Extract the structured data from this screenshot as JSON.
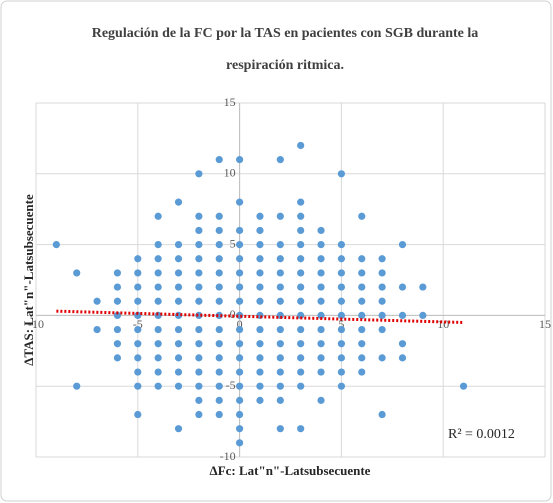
{
  "chart_data": {
    "type": "scatter",
    "title": [
      "Regulación de la  FC por la TAS en pacientes con SGB durante la",
      "respiración ritmica."
    ],
    "x_label": "ΔFc: Lat\"n\"-Latsubsecuente",
    "y_label": "ΔTAS: Lat\"n\"-Latsubsecuente",
    "annotation": "R² = 0.0012",
    "xlim": [
      -10,
      15
    ],
    "ylim": [
      -10,
      15
    ],
    "xticks": [
      -10,
      -5,
      0,
      5,
      10,
      15
    ],
    "yticks": [
      -10,
      -5,
      0,
      5,
      10,
      15
    ],
    "grid": true,
    "series": [
      {
        "color": "#5b9bd5",
        "x": [
          -9,
          -8,
          -8,
          -7,
          -7,
          -6,
          -6,
          -6,
          -6,
          -6,
          -6,
          -6,
          -5,
          -5,
          -5,
          -5,
          -5,
          -5,
          -5,
          -5,
          -5,
          -5,
          -5,
          -4,
          -4,
          -4,
          -4,
          -4,
          -4,
          -4,
          -4,
          -4,
          -4,
          -4,
          -4,
          -3,
          -3,
          -3,
          -3,
          -3,
          -3,
          -3,
          -3,
          -3,
          -3,
          -3,
          -3,
          -3,
          -2,
          -2,
          -2,
          -2,
          -2,
          -2,
          -2,
          -2,
          -2,
          -2,
          -2,
          -2,
          -2,
          -2,
          -2,
          -2,
          -1,
          -1,
          -1,
          -1,
          -1,
          -1,
          -1,
          -1,
          -1,
          -1,
          -1,
          -1,
          -1,
          -1,
          -1,
          -1,
          0,
          0,
          0,
          0,
          0,
          0,
          0,
          0,
          0,
          0,
          0,
          0,
          0,
          0,
          0,
          0,
          0,
          0,
          1,
          1,
          1,
          1,
          1,
          1,
          1,
          1,
          1,
          1,
          1,
          1,
          1,
          1,
          2,
          2,
          2,
          2,
          2,
          2,
          2,
          2,
          2,
          2,
          2,
          2,
          2,
          2,
          2,
          3,
          3,
          3,
          3,
          3,
          3,
          3,
          3,
          3,
          3,
          3,
          3,
          3,
          3,
          3,
          3,
          4,
          4,
          4,
          4,
          4,
          4,
          4,
          4,
          4,
          4,
          4,
          4,
          5,
          5,
          5,
          5,
          5,
          5,
          5,
          5,
          5,
          5,
          5,
          5,
          6,
          6,
          6,
          6,
          6,
          6,
          6,
          6,
          6,
          6,
          7,
          7,
          7,
          7,
          7,
          7,
          7,
          7,
          8,
          8,
          8,
          8,
          8,
          9,
          9,
          11
        ],
        "values": [
          5,
          3,
          -5,
          1,
          -1,
          3,
          2,
          1,
          0,
          -1,
          -2,
          -3,
          4,
          3,
          2,
          1,
          0,
          -1,
          -2,
          -3,
          -4,
          -5,
          -7,
          7,
          5,
          4,
          3,
          2,
          1,
          0,
          -1,
          -2,
          -3,
          -4,
          -5,
          8,
          5,
          4,
          3,
          2,
          1,
          0,
          -1,
          -2,
          -3,
          -4,
          -5,
          -8,
          10,
          7,
          6,
          5,
          4,
          3,
          2,
          1,
          0,
          -1,
          -2,
          -3,
          -4,
          -5,
          -6,
          -7,
          11,
          7,
          6,
          5,
          4,
          3,
          2,
          1,
          0,
          -1,
          -2,
          -3,
          -4,
          -5,
          -6,
          -7,
          11,
          8,
          6,
          5,
          4,
          3,
          2,
          1,
          0,
          -1,
          -2,
          -3,
          -4,
          -5,
          -6,
          -7,
          -8,
          -9,
          7,
          6,
          5,
          4,
          3,
          2,
          1,
          0,
          -1,
          -2,
          -3,
          -4,
          -5,
          -6,
          11,
          7,
          5,
          4,
          3,
          2,
          1,
          0,
          -1,
          -2,
          -3,
          -4,
          -5,
          -6,
          -8,
          12,
          8,
          7,
          6,
          5,
          4,
          3,
          2,
          1,
          0,
          -1,
          -2,
          -3,
          -4,
          -5,
          -8,
          6,
          5,
          4,
          3,
          2,
          1,
          0,
          -1,
          -2,
          -3,
          -4,
          -6,
          10,
          5,
          4,
          3,
          2,
          1,
          0,
          -1,
          -2,
          -3,
          -4,
          -5,
          7,
          4,
          3,
          2,
          1,
          0,
          -1,
          -2,
          -3,
          -4,
          4,
          3,
          2,
          1,
          0,
          -1,
          -3,
          -7,
          5,
          2,
          0,
          -2,
          -3,
          2,
          0,
          -5
        ]
      }
    ],
    "trendline": {
      "color": "#e00000",
      "x": [
        -9,
        11
      ],
      "values": [
        0.3,
        -0.5
      ]
    }
  }
}
